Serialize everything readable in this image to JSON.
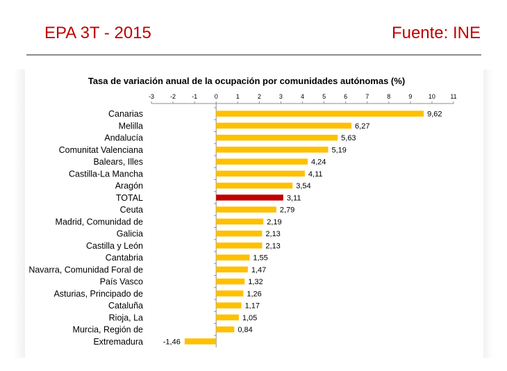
{
  "header": {
    "title": "EPA 3T - 2015",
    "source": "Fuente: INE"
  },
  "colors": {
    "accent": "#c00000",
    "bar": "#ffc000",
    "highlight_bar": "#c00000",
    "rule": "#8c8c8c"
  },
  "chart_data": {
    "type": "bar",
    "orientation": "horizontal",
    "title": "Tasa de variación anual de la ocupación por comunidades autónomas (%)",
    "xlim": [
      -3,
      11
    ],
    "ticks": [
      "-3",
      "-2",
      "-1",
      "0",
      "1",
      "2",
      "3",
      "4",
      "5",
      "6",
      "7",
      "8",
      "9",
      "10",
      "11"
    ],
    "grid": false,
    "highlight": "TOTAL",
    "categories": [
      "Canarias",
      "Melilla",
      "Andalucía",
      "Comunitat Valenciana",
      "Balears, Illes",
      "Castilla-La Mancha",
      "Aragón",
      "TOTAL",
      "Ceuta",
      "Madrid, Comunidad de",
      "Galicia",
      "Castilla y León",
      "Cantabria",
      "Navarra, Comunidad Foral de",
      "País Vasco",
      "Asturias, Principado de",
      "Cataluña",
      "Rioja, La",
      "Murcia, Región de",
      "Extremadura"
    ],
    "values": [
      9.62,
      6.27,
      5.63,
      5.19,
      4.24,
      4.11,
      3.54,
      3.11,
      2.79,
      2.19,
      2.13,
      2.13,
      1.55,
      1.47,
      1.32,
      1.26,
      1.17,
      1.05,
      0.84,
      -1.46
    ],
    "value_labels": [
      "9,62",
      "6,27",
      "5,63",
      "5,19",
      "4,24",
      "4,11",
      "3,54",
      "3,11",
      "2,79",
      "2,19",
      "2,13",
      "2,13",
      "1,55",
      "1,47",
      "1,32",
      "1,26",
      "1,17",
      "1,05",
      "0,84",
      "-1,46"
    ]
  }
}
